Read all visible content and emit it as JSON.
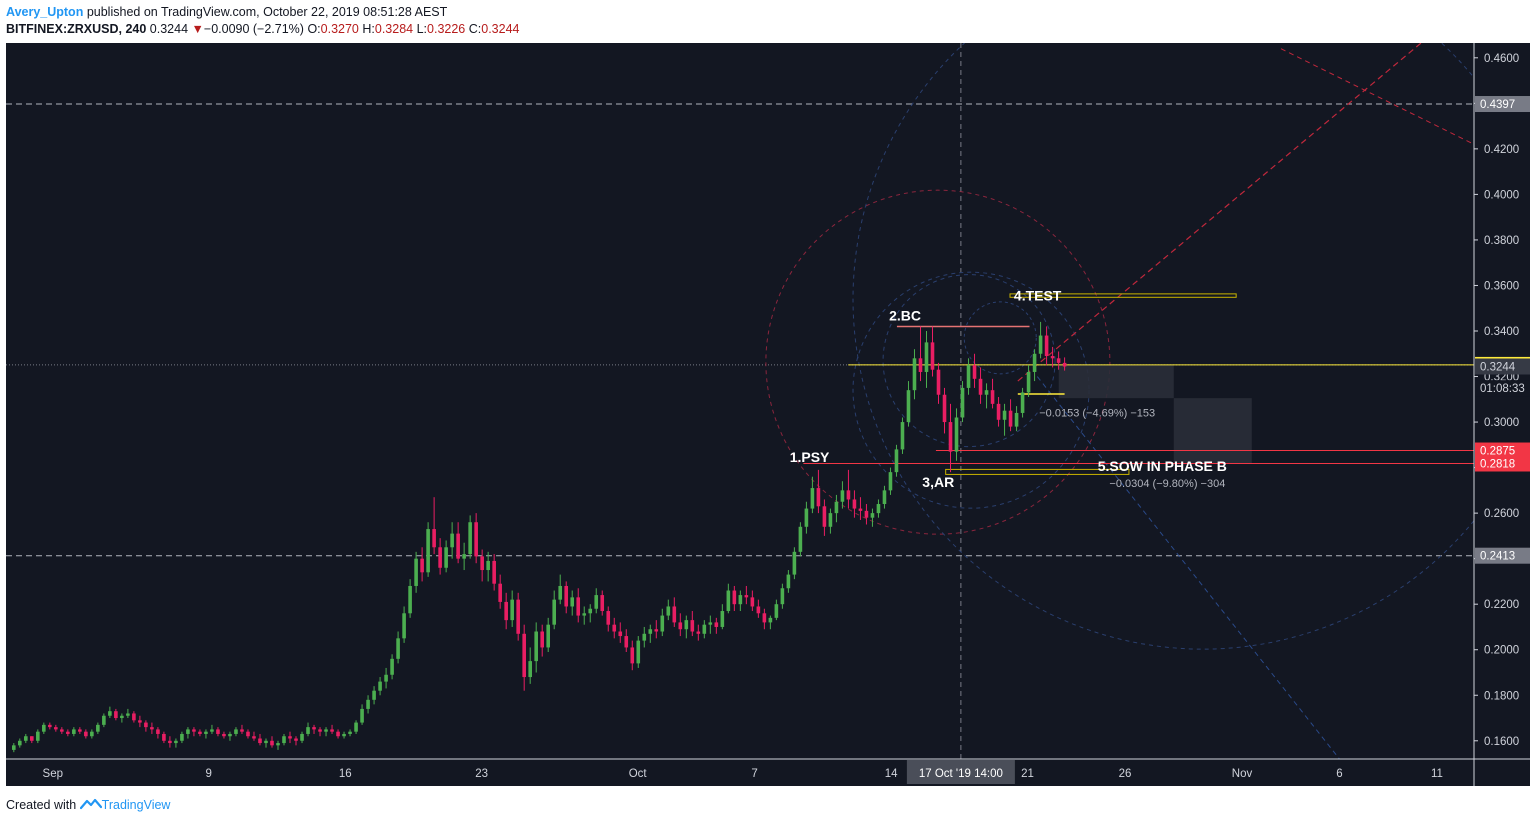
{
  "header": {
    "author": "Avery_Upton",
    "published_text": "published on TradingView.com, October 22, 2019 08:51:28 AEST",
    "symbol": "BITFINEX:ZRXUSD, 240",
    "last": "0.3244",
    "change_arrow": "▼",
    "change": "−0.0090 (−2.71%)",
    "open_label": "O:",
    "open": "0.3270",
    "high_label": "H:",
    "high": "0.3284",
    "low_label": "L:",
    "low": "0.3226",
    "close_label": "C:",
    "close": "0.3244"
  },
  "footer": {
    "created_with": "Created with",
    "brand": "TradingView"
  },
  "colors": {
    "background": "#131722",
    "up": "#4caf50",
    "down": "#e91e63",
    "highlight": "#ffeb3b",
    "resistance_red": "#f23645",
    "grid_dashed": "#9598a1"
  },
  "chart_data": {
    "type": "candlestick",
    "interval": "240",
    "y_axis": {
      "min": 0.152,
      "max": 0.4665,
      "ticks": [
        "0.4600",
        "0.4400",
        "0.4200",
        "0.4000",
        "0.3800",
        "0.3600",
        "0.3400",
        "0.3200",
        "0.3000",
        "0.2800",
        "0.2600",
        "0.2400",
        "0.2200",
        "0.2000",
        "0.1800",
        "0.1600"
      ],
      "tick_values": [
        0.46,
        0.44,
        0.42,
        0.4,
        0.38,
        0.36,
        0.34,
        0.32,
        0.3,
        0.28,
        0.26,
        0.24,
        0.22,
        0.2,
        0.18,
        0.16
      ]
    },
    "x_axis": {
      "labels": [
        {
          "text": "Sep",
          "day": 0
        },
        {
          "text": "9",
          "day": 8
        },
        {
          "text": "16",
          "day": 15
        },
        {
          "text": "23",
          "day": 22
        },
        {
          "text": "Oct",
          "day": 30
        },
        {
          "text": "7",
          "day": 36
        },
        {
          "text": "14",
          "day": 43
        },
        {
          "text": "21",
          "day": 50
        },
        {
          "text": "26",
          "day": 55
        },
        {
          "text": "Nov",
          "day": 61
        },
        {
          "text": "6",
          "day": 66
        },
        {
          "text": "11",
          "day": 71
        }
      ],
      "day_min": -2.4,
      "day_max": 72.9,
      "crosshair_label": "17 Oct '19   14:00",
      "crosshair_day": 46.58
    },
    "price_labels": [
      {
        "text": "0.4397",
        "value": 0.4397,
        "style": "gray"
      },
      {
        "text": "0.3251",
        "value": 0.3251,
        "style": "yellow"
      },
      {
        "text": "0.3244",
        "value": 0.3244,
        "style": "dark"
      },
      {
        "text": "01:08:33",
        "value": 0.3149,
        "style": "timer"
      },
      {
        "text": "0.2875",
        "value": 0.2875,
        "style": "red"
      },
      {
        "text": "0.2818",
        "value": 0.2818,
        "style": "red"
      },
      {
        "text": "0.2413",
        "value": 0.2413,
        "style": "gray"
      }
    ],
    "horizontal_lines": [
      {
        "value": 0.4397,
        "style": "dashed"
      },
      {
        "value": 0.2413,
        "style": "dashed"
      },
      {
        "value": 0.3251,
        "style": "dotted"
      }
    ],
    "annotations": [
      {
        "text": "1.PSY",
        "day": 37.8,
        "value": 0.2825
      },
      {
        "text": "2.BC",
        "day": 42.9,
        "value": 0.3445
      },
      {
        "text": "3,AR",
        "day": 44.6,
        "value": 0.2715
      },
      {
        "text": "4.TEST",
        "day": 49.3,
        "value": 0.3535
      },
      {
        "text": "5.SOW IN PHASE B",
        "day": 53.6,
        "value": 0.2785
      }
    ],
    "measures": [
      {
        "text": "−0.0153 (−4.69%) −153",
        "day": 50.6,
        "value": 0.3025
      },
      {
        "text": "−0.0304 (−9.80%) −304",
        "day": 54.2,
        "value": 0.2715
      }
    ],
    "candles": [
      [
        0.156,
        0.159,
        0.155,
        0.158
      ],
      [
        0.158,
        0.161,
        0.157,
        0.16
      ],
      [
        0.16,
        0.163,
        0.159,
        0.162
      ],
      [
        0.162,
        0.162,
        0.159,
        0.16
      ],
      [
        0.16,
        0.165,
        0.159,
        0.164
      ],
      [
        0.164,
        0.168,
        0.163,
        0.167
      ],
      [
        0.167,
        0.168,
        0.165,
        0.166
      ],
      [
        0.166,
        0.167,
        0.164,
        0.165
      ],
      [
        0.165,
        0.166,
        0.163,
        0.164
      ],
      [
        0.164,
        0.165,
        0.162,
        0.163
      ],
      [
        0.163,
        0.166,
        0.162,
        0.165
      ],
      [
        0.165,
        0.166,
        0.163,
        0.164
      ],
      [
        0.164,
        0.165,
        0.161,
        0.162
      ],
      [
        0.162,
        0.165,
        0.161,
        0.164
      ],
      [
        0.164,
        0.168,
        0.163,
        0.167
      ],
      [
        0.167,
        0.172,
        0.166,
        0.171
      ],
      [
        0.171,
        0.175,
        0.17,
        0.173
      ],
      [
        0.173,
        0.174,
        0.169,
        0.17
      ],
      [
        0.17,
        0.172,
        0.168,
        0.171
      ],
      [
        0.171,
        0.174,
        0.17,
        0.172
      ],
      [
        0.172,
        0.173,
        0.168,
        0.169
      ],
      [
        0.169,
        0.171,
        0.166,
        0.168
      ],
      [
        0.168,
        0.169,
        0.164,
        0.166
      ],
      [
        0.166,
        0.168,
        0.163,
        0.165
      ],
      [
        0.165,
        0.166,
        0.161,
        0.163
      ],
      [
        0.163,
        0.164,
        0.159,
        0.16
      ],
      [
        0.16,
        0.162,
        0.157,
        0.159
      ],
      [
        0.159,
        0.161,
        0.157,
        0.16
      ],
      [
        0.16,
        0.164,
        0.159,
        0.163
      ],
      [
        0.163,
        0.166,
        0.161,
        0.165
      ],
      [
        0.165,
        0.166,
        0.162,
        0.164
      ],
      [
        0.164,
        0.165,
        0.162,
        0.163
      ],
      [
        0.163,
        0.165,
        0.161,
        0.164
      ],
      [
        0.164,
        0.167,
        0.163,
        0.165
      ],
      [
        0.165,
        0.166,
        0.162,
        0.163
      ],
      [
        0.163,
        0.164,
        0.161,
        0.162
      ],
      [
        0.162,
        0.164,
        0.16,
        0.163
      ],
      [
        0.163,
        0.166,
        0.162,
        0.165
      ],
      [
        0.165,
        0.167,
        0.163,
        0.164
      ],
      [
        0.164,
        0.165,
        0.161,
        0.162
      ],
      [
        0.162,
        0.164,
        0.16,
        0.161
      ],
      [
        0.161,
        0.163,
        0.158,
        0.159
      ],
      [
        0.159,
        0.161,
        0.157,
        0.16
      ],
      [
        0.16,
        0.162,
        0.157,
        0.158
      ],
      [
        0.158,
        0.16,
        0.156,
        0.159
      ],
      [
        0.159,
        0.163,
        0.158,
        0.162
      ],
      [
        0.162,
        0.164,
        0.159,
        0.161
      ],
      [
        0.161,
        0.162,
        0.158,
        0.16
      ],
      [
        0.16,
        0.164,
        0.159,
        0.163
      ],
      [
        0.163,
        0.168,
        0.162,
        0.166
      ],
      [
        0.166,
        0.167,
        0.163,
        0.165
      ],
      [
        0.165,
        0.166,
        0.162,
        0.164
      ],
      [
        0.164,
        0.166,
        0.162,
        0.165
      ],
      [
        0.165,
        0.167,
        0.163,
        0.164
      ],
      [
        0.164,
        0.165,
        0.161,
        0.162
      ],
      [
        0.162,
        0.164,
        0.161,
        0.163
      ],
      [
        0.163,
        0.165,
        0.162,
        0.164
      ],
      [
        0.164,
        0.169,
        0.163,
        0.168
      ],
      [
        0.168,
        0.176,
        0.167,
        0.174
      ],
      [
        0.174,
        0.18,
        0.172,
        0.178
      ],
      [
        0.178,
        0.184,
        0.176,
        0.182
      ],
      [
        0.182,
        0.188,
        0.18,
        0.186
      ],
      [
        0.186,
        0.192,
        0.183,
        0.189
      ],
      [
        0.189,
        0.198,
        0.187,
        0.196
      ],
      [
        0.196,
        0.208,
        0.194,
        0.205
      ],
      [
        0.205,
        0.219,
        0.203,
        0.216
      ],
      [
        0.216,
        0.231,
        0.214,
        0.228
      ],
      [
        0.228,
        0.243,
        0.225,
        0.24
      ],
      [
        0.24,
        0.245,
        0.23,
        0.234
      ],
      [
        0.234,
        0.256,
        0.232,
        0.253
      ],
      [
        0.253,
        0.267,
        0.242,
        0.245
      ],
      [
        0.245,
        0.249,
        0.233,
        0.236
      ],
      [
        0.236,
        0.248,
        0.234,
        0.245
      ],
      [
        0.245,
        0.256,
        0.24,
        0.251
      ],
      [
        0.251,
        0.256,
        0.238,
        0.24
      ],
      [
        0.24,
        0.247,
        0.235,
        0.242
      ],
      [
        0.242,
        0.259,
        0.24,
        0.256
      ],
      [
        0.256,
        0.26,
        0.238,
        0.241
      ],
      [
        0.241,
        0.244,
        0.23,
        0.235
      ],
      [
        0.235,
        0.243,
        0.23,
        0.239
      ],
      [
        0.239,
        0.242,
        0.226,
        0.229
      ],
      [
        0.229,
        0.233,
        0.218,
        0.221
      ],
      [
        0.221,
        0.225,
        0.209,
        0.213
      ],
      [
        0.213,
        0.226,
        0.21,
        0.222
      ],
      [
        0.222,
        0.225,
        0.204,
        0.207
      ],
      [
        0.207,
        0.211,
        0.182,
        0.188
      ],
      [
        0.188,
        0.201,
        0.185,
        0.195
      ],
      [
        0.195,
        0.212,
        0.19,
        0.208
      ],
      [
        0.208,
        0.211,
        0.197,
        0.201
      ],
      [
        0.201,
        0.214,
        0.199,
        0.211
      ],
      [
        0.211,
        0.226,
        0.209,
        0.222
      ],
      [
        0.222,
        0.233,
        0.22,
        0.228
      ],
      [
        0.228,
        0.23,
        0.216,
        0.219
      ],
      [
        0.219,
        0.226,
        0.215,
        0.223
      ],
      [
        0.223,
        0.227,
        0.212,
        0.215
      ],
      [
        0.215,
        0.219,
        0.211,
        0.216
      ],
      [
        0.216,
        0.22,
        0.212,
        0.218
      ],
      [
        0.218,
        0.227,
        0.216,
        0.224
      ],
      [
        0.224,
        0.226,
        0.215,
        0.217
      ],
      [
        0.217,
        0.219,
        0.208,
        0.211
      ],
      [
        0.211,
        0.214,
        0.205,
        0.208
      ],
      [
        0.208,
        0.212,
        0.203,
        0.206
      ],
      [
        0.206,
        0.209,
        0.199,
        0.201
      ],
      [
        0.201,
        0.204,
        0.191,
        0.194
      ],
      [
        0.194,
        0.206,
        0.192,
        0.204
      ],
      [
        0.204,
        0.21,
        0.201,
        0.207
      ],
      [
        0.207,
        0.211,
        0.203,
        0.209
      ],
      [
        0.209,
        0.213,
        0.205,
        0.208
      ],
      [
        0.208,
        0.218,
        0.206,
        0.215
      ],
      [
        0.215,
        0.222,
        0.213,
        0.219
      ],
      [
        0.219,
        0.223,
        0.21,
        0.212
      ],
      [
        0.212,
        0.216,
        0.206,
        0.209
      ],
      [
        0.209,
        0.215,
        0.205,
        0.213
      ],
      [
        0.213,
        0.217,
        0.206,
        0.208
      ],
      [
        0.208,
        0.211,
        0.204,
        0.207
      ],
      [
        0.207,
        0.213,
        0.205,
        0.211
      ],
      [
        0.211,
        0.215,
        0.207,
        0.212
      ],
      [
        0.212,
        0.214,
        0.207,
        0.21
      ],
      [
        0.21,
        0.22,
        0.209,
        0.217
      ],
      [
        0.217,
        0.229,
        0.216,
        0.226
      ],
      [
        0.226,
        0.228,
        0.217,
        0.22
      ],
      [
        0.22,
        0.226,
        0.217,
        0.224
      ],
      [
        0.224,
        0.228,
        0.22,
        0.223
      ],
      [
        0.223,
        0.226,
        0.217,
        0.219
      ],
      [
        0.219,
        0.222,
        0.214,
        0.216
      ],
      [
        0.216,
        0.218,
        0.209,
        0.212
      ],
      [
        0.212,
        0.215,
        0.209,
        0.214
      ],
      [
        0.214,
        0.222,
        0.213,
        0.22
      ],
      [
        0.22,
        0.229,
        0.218,
        0.227
      ],
      [
        0.227,
        0.235,
        0.225,
        0.233
      ],
      [
        0.233,
        0.245,
        0.231,
        0.243
      ],
      [
        0.243,
        0.256,
        0.241,
        0.254
      ],
      [
        0.254,
        0.265,
        0.251,
        0.262
      ],
      [
        0.262,
        0.276,
        0.26,
        0.271
      ],
      [
        0.271,
        0.279,
        0.26,
        0.263
      ],
      [
        0.263,
        0.266,
        0.25,
        0.254
      ],
      [
        0.254,
        0.262,
        0.251,
        0.26
      ],
      [
        0.26,
        0.268,
        0.256,
        0.265
      ],
      [
        0.265,
        0.274,
        0.262,
        0.27
      ],
      [
        0.27,
        0.279,
        0.262,
        0.266
      ],
      [
        0.266,
        0.27,
        0.258,
        0.262
      ],
      [
        0.262,
        0.267,
        0.257,
        0.261
      ],
      [
        0.261,
        0.264,
        0.255,
        0.258
      ],
      [
        0.258,
        0.262,
        0.254,
        0.26
      ],
      [
        0.26,
        0.266,
        0.258,
        0.264
      ],
      [
        0.264,
        0.272,
        0.262,
        0.27
      ],
      [
        0.27,
        0.28,
        0.268,
        0.278
      ],
      [
        0.278,
        0.29,
        0.276,
        0.288
      ],
      [
        0.288,
        0.302,
        0.286,
        0.3
      ],
      [
        0.3,
        0.318,
        0.298,
        0.314
      ],
      [
        0.314,
        0.332,
        0.31,
        0.328
      ],
      [
        0.328,
        0.342,
        0.318,
        0.322
      ],
      [
        0.322,
        0.34,
        0.315,
        0.335
      ],
      [
        0.335,
        0.342,
        0.32,
        0.323
      ],
      [
        0.323,
        0.326,
        0.308,
        0.312
      ],
      [
        0.312,
        0.315,
        0.295,
        0.3
      ],
      [
        0.3,
        0.308,
        0.278,
        0.287
      ],
      [
        0.287,
        0.306,
        0.283,
        0.302
      ],
      [
        0.302,
        0.318,
        0.3,
        0.315
      ],
      [
        0.315,
        0.328,
        0.312,
        0.325
      ],
      [
        0.325,
        0.33,
        0.315,
        0.319
      ],
      [
        0.319,
        0.324,
        0.308,
        0.312
      ],
      [
        0.312,
        0.317,
        0.306,
        0.314
      ],
      [
        0.314,
        0.319,
        0.306,
        0.308
      ],
      [
        0.308,
        0.311,
        0.298,
        0.301
      ],
      [
        0.301,
        0.308,
        0.294,
        0.305
      ],
      [
        0.305,
        0.31,
        0.296,
        0.298
      ],
      [
        0.298,
        0.307,
        0.296,
        0.304
      ],
      [
        0.304,
        0.315,
        0.302,
        0.313
      ],
      [
        0.313,
        0.325,
        0.311,
        0.322
      ],
      [
        0.322,
        0.332,
        0.318,
        0.33
      ],
      [
        0.33,
        0.344,
        0.328,
        0.338
      ],
      [
        0.338,
        0.342,
        0.325,
        0.329
      ],
      [
        0.329,
        0.333,
        0.324,
        0.328
      ],
      [
        0.328,
        0.331,
        0.323,
        0.326
      ],
      [
        0.326,
        0.3284,
        0.3226,
        0.3244
      ]
    ]
  }
}
